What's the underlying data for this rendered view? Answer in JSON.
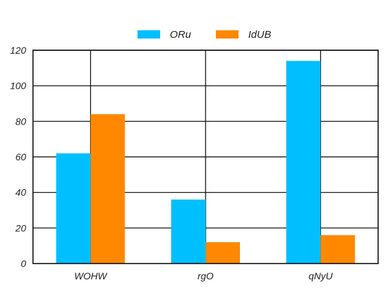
{
  "chart_data": {
    "type": "bar",
    "categories": [
      "WOHW",
      "rgO",
      "qNyU"
    ],
    "series": [
      {
        "name": "ORu",
        "values": [
          62,
          36,
          114
        ],
        "color": "#00bfff"
      },
      {
        "name": "IdUB",
        "values": [
          84,
          12,
          16
        ],
        "color": "#ff8800"
      }
    ],
    "ylim": [
      0,
      120
    ],
    "yticks": [
      0,
      20,
      40,
      60,
      80,
      100,
      120
    ],
    "grid": true,
    "legend": "top-center"
  }
}
